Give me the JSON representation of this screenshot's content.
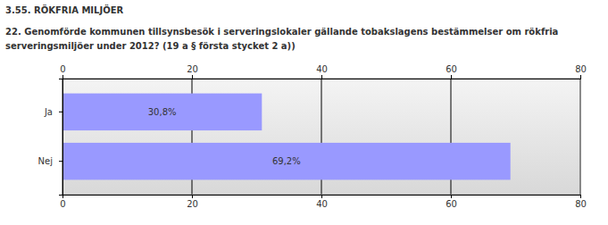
{
  "chart_data": {
    "type": "bar",
    "title": "3.55. RÖKFRIA MILJÖER",
    "subtitle": "22. Genomförde kommunen tillsynsbesök i serveringslokaler gällande tobakslagens bestämmelser om rökfria serveringsmiljöer under 2012? (19 a § första stycket 2 a))",
    "categories": [
      "Ja",
      "Nej"
    ],
    "values": [
      30.8,
      69.2
    ],
    "value_labels": [
      "30,8%",
      "69,2%"
    ],
    "color": "#9999ff",
    "orientation": "horizontal",
    "data_labels": true,
    "grid": true,
    "xlim": [
      0,
      80
    ],
    "xticks": [
      0,
      20,
      40,
      60,
      80
    ]
  }
}
